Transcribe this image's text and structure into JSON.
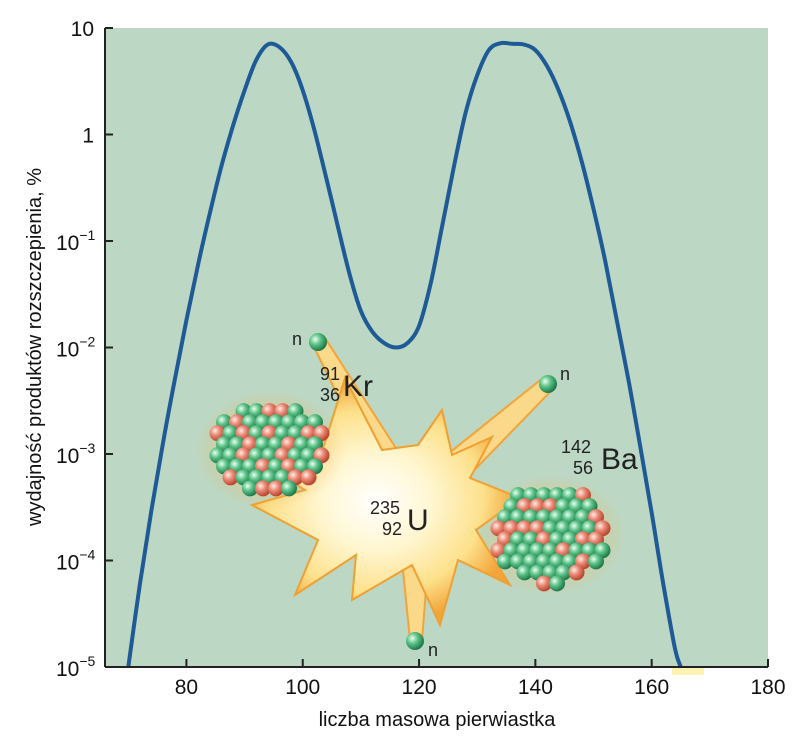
{
  "chart_data": {
    "type": "line",
    "xlabel": "liczba masowa pierwiastka",
    "ylabel": "wydajność produktów rozszczepienia, %",
    "xlim": [
      66,
      180
    ],
    "ylim": [
      1e-05,
      10
    ],
    "yscale": "log",
    "x_ticks": [
      80,
      100,
      120,
      140,
      160,
      180
    ],
    "y_ticks": [
      {
        "base": "10",
        "exp": "",
        "value": 10
      },
      {
        "base": "1",
        "exp": "",
        "value": 1
      },
      {
        "base": "10",
        "exp": "−1",
        "value": 0.1
      },
      {
        "base": "10",
        "exp": "−2",
        "value": 0.01
      },
      {
        "base": "10",
        "exp": "−3",
        "value": 0.001
      },
      {
        "base": "10",
        "exp": "−4",
        "value": 0.0001
      },
      {
        "base": "10",
        "exp": "−5",
        "value": 1e-05
      }
    ],
    "series": [
      {
        "x": [
          70,
          72,
          74,
          76,
          78,
          80,
          82,
          84,
          86,
          88,
          90,
          92,
          94,
          96,
          98,
          100,
          102,
          104,
          106,
          108,
          110,
          112,
          114,
          116,
          118,
          120,
          122,
          124,
          126,
          128,
          130,
          132,
          134,
          136,
          138,
          140,
          142,
          144,
          146,
          148,
          150,
          152,
          154,
          156,
          158,
          160,
          162,
          164,
          165
        ],
        "y": [
          1e-05,
          6e-05,
          0.0003,
          0.0013,
          0.005,
          0.018,
          0.06,
          0.18,
          0.5,
          1.2,
          2.6,
          5,
          7,
          6.6,
          4.8,
          2.6,
          1.1,
          0.4,
          0.14,
          0.05,
          0.022,
          0.014,
          0.011,
          0.01,
          0.011,
          0.016,
          0.04,
          0.14,
          0.5,
          1.6,
          3.6,
          6.2,
          7.2,
          7.1,
          7.0,
          6.2,
          4.4,
          2.6,
          1.3,
          0.55,
          0.2,
          0.065,
          0.018,
          0.005,
          0.0012,
          0.00028,
          6e-05,
          1.5e-05,
          1e-05
        ]
      }
    ],
    "line_color": "#1e5a96",
    "background_color": "#bcd8c4"
  },
  "illustration": {
    "uranium": {
      "mass": "235",
      "atomic": "92",
      "symbol": "U"
    },
    "krypton": {
      "mass": "91",
      "atomic": "36",
      "symbol": "Kr"
    },
    "barium": {
      "mass": "142",
      "atomic": "56",
      "symbol": "Ba"
    },
    "neutron_label": "n",
    "colors": {
      "nucleon_green": "#3aa86a",
      "nucleon_red": "#e0705e",
      "flash_orange": "#f2a43a",
      "flash_yellow": "#fde9a0"
    }
  }
}
